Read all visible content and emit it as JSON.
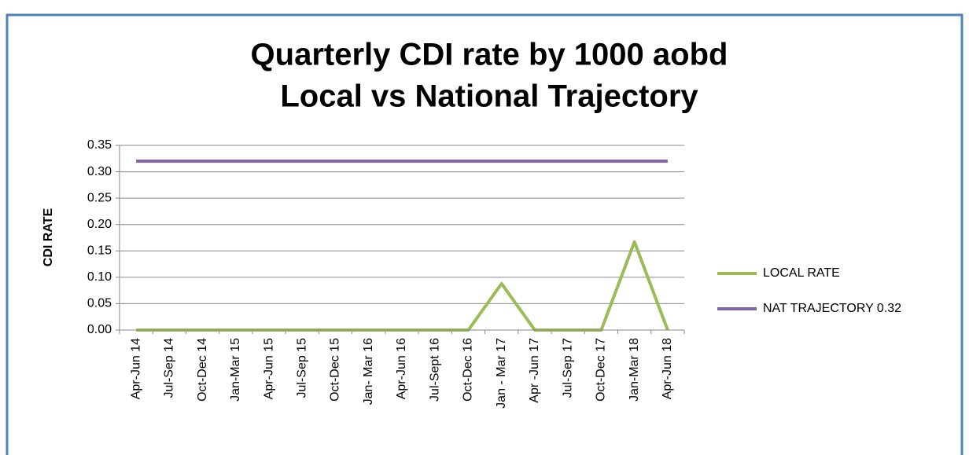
{
  "chart_data": {
    "type": "line",
    "title": [
      "Quarterly CDI rate by 1000 aobd",
      "Local vs National Trajectory"
    ],
    "y_label": "CDI RATE",
    "categories": [
      "Apr-Jun 14",
      "Jul-Sep 14",
      "Oct-Dec 14",
      "Jan-Mar 15",
      "Apr-Jun 15",
      "Jul-Sep 15",
      "Oct-Dec 15",
      "Jan- Mar 16",
      "Apr-Jun 16",
      "Jul-Sept 16",
      "Oct-Dec 16",
      "Jan - Mar 17",
      "Apr -Jun 17",
      "Jul-Sep 17",
      "Oct-Dec 17",
      "Jan-Mar 18",
      "Apr-Jun 18"
    ],
    "series": [
      {
        "name": "LOCAL RATE",
        "color": "#9bbb59",
        "values": [
          0,
          0,
          0,
          0,
          0,
          0,
          0,
          0,
          0,
          0,
          0,
          0.088,
          0,
          0,
          0,
          0.167,
          0
        ]
      },
      {
        "name": "NAT TRAJECTORY 0.32",
        "color": "#8064a2",
        "values": [
          0.32,
          0.32,
          0.32,
          0.32,
          0.32,
          0.32,
          0.32,
          0.32,
          0.32,
          0.32,
          0.32,
          0.32,
          0.32,
          0.32,
          0.32,
          0.32,
          0.32
        ]
      }
    ],
    "ylim": [
      0,
      0.35
    ],
    "yticks": [
      {
        "value": 0,
        "label": "0.00"
      },
      0.05,
      {
        "value": 0.1,
        "label": "0.10"
      },
      0.15,
      {
        "value": 0.2,
        "label": "0.20"
      },
      0.25,
      {
        "value": 0.3,
        "label": "0.30"
      },
      0.35
    ],
    "grid": true,
    "legend": "right"
  }
}
